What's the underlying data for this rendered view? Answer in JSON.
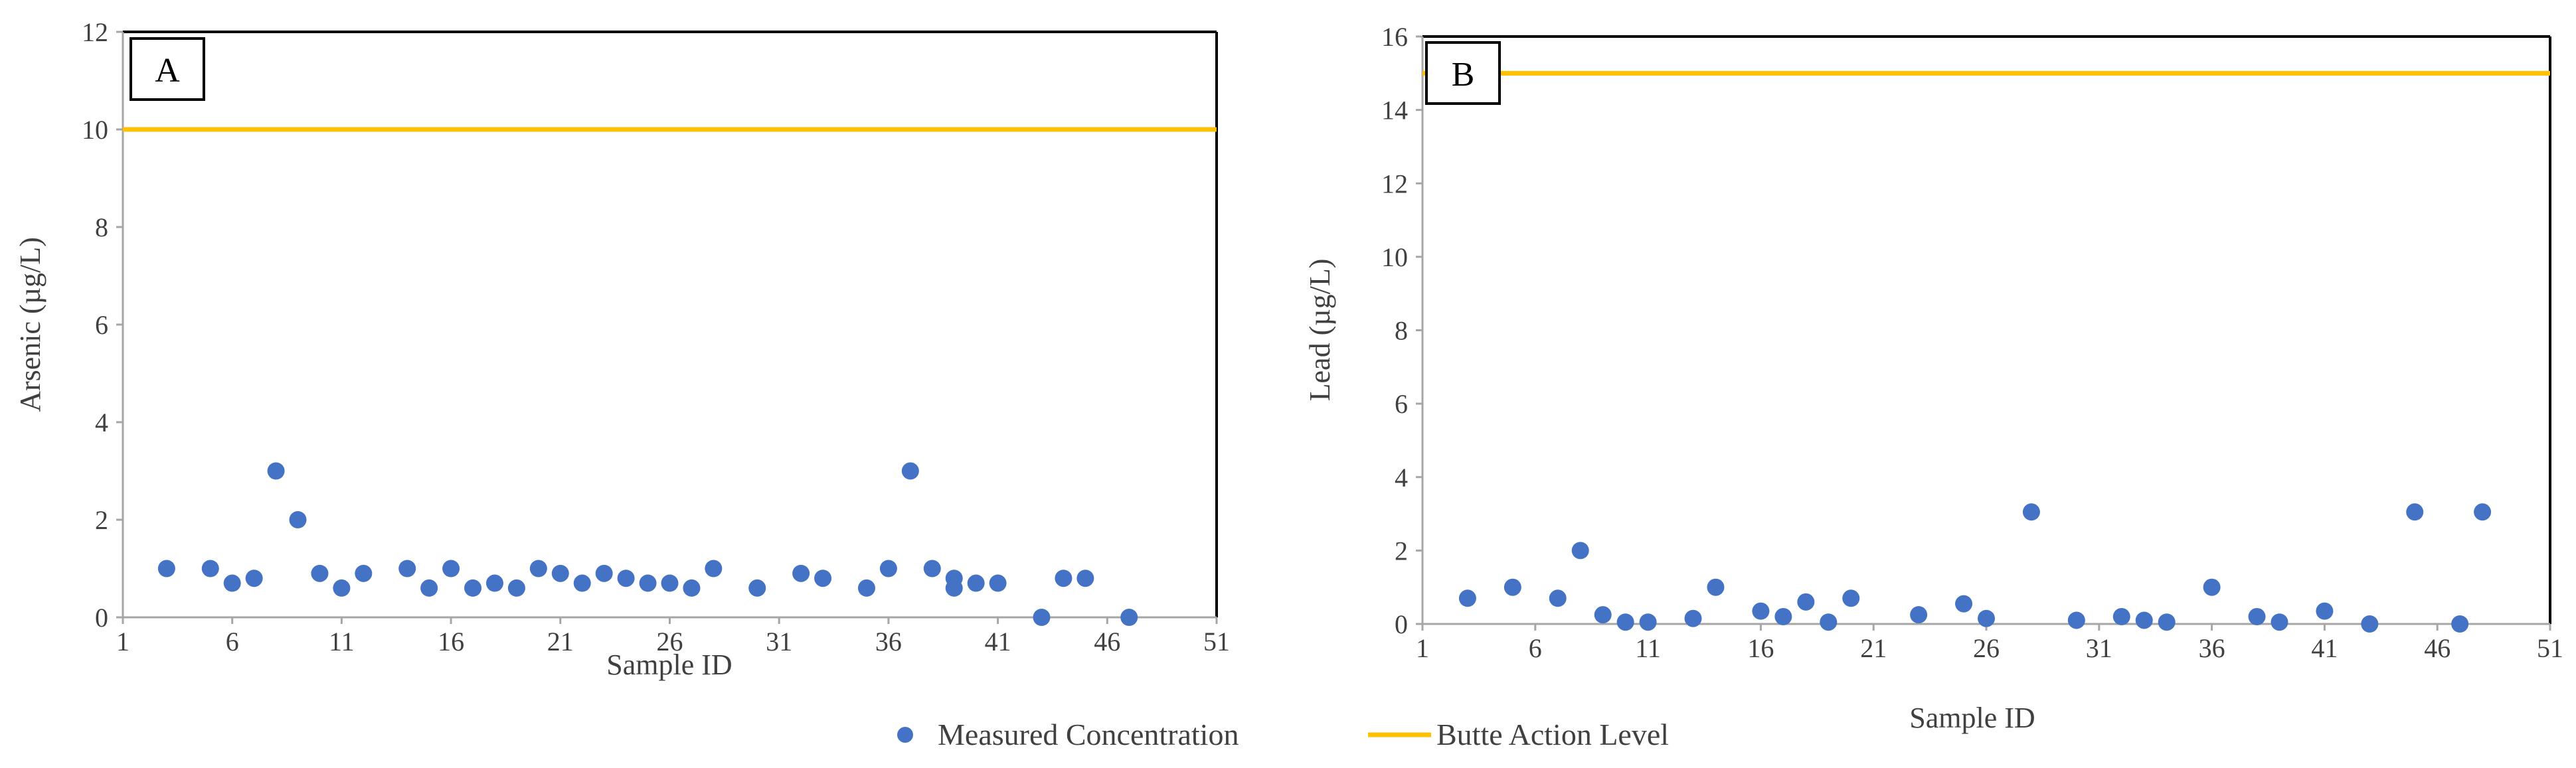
{
  "colors": {
    "points": "#4472C4",
    "action_level": "#FFC000",
    "axis": "#A6A6A6",
    "text": "#404040"
  },
  "legend": {
    "measured": "Measured Concentration",
    "action_level": "Butte Action Level"
  },
  "chart_data": [
    {
      "type": "scatter",
      "panel": "A",
      "xlabel": "Sample ID",
      "ylabel": "Arsenic (µg/L)",
      "xlim": [
        1,
        51
      ],
      "ylim": [
        0,
        12
      ],
      "xticks": [
        1,
        6,
        11,
        16,
        21,
        26,
        31,
        36,
        41,
        46,
        51
      ],
      "yticks": [
        0,
        2,
        4,
        6,
        8,
        10,
        12
      ],
      "action_level": 10,
      "series": [
        {
          "name": "Measured Concentration",
          "x": [
            3,
            5,
            6,
            7,
            8,
            9,
            10,
            11,
            12,
            14,
            15,
            16,
            17,
            18,
            19,
            20,
            21,
            22,
            23,
            24,
            25,
            26,
            27,
            28,
            30,
            32,
            33,
            35,
            36,
            37,
            38,
            39,
            39,
            40,
            41,
            43,
            44,
            45,
            47
          ],
          "y": [
            1.0,
            1.0,
            0.7,
            0.8,
            3.0,
            2.0,
            0.9,
            0.6,
            0.9,
            1.0,
            0.6,
            1.0,
            0.6,
            0.7,
            0.6,
            1.0,
            0.9,
            0.7,
            0.9,
            0.8,
            0.7,
            0.7,
            0.6,
            1.0,
            0.6,
            0.9,
            0.8,
            0.6,
            1.0,
            3.0,
            1.0,
            0.8,
            0.6,
            0.7,
            0.7,
            0.0,
            0.8,
            0.8,
            0.0
          ]
        },
        {
          "name": "Butte Action Level",
          "x": [
            1,
            51
          ],
          "y": [
            10,
            10
          ]
        }
      ]
    },
    {
      "type": "scatter",
      "panel": "B",
      "xlabel": "Sample ID",
      "ylabel": "Lead (µg/L)",
      "xlim": [
        1,
        51
      ],
      "ylim": [
        0,
        16
      ],
      "xticks": [
        1,
        6,
        11,
        16,
        21,
        26,
        31,
        36,
        41,
        46,
        51
      ],
      "yticks": [
        0,
        2,
        4,
        6,
        8,
        10,
        12,
        14,
        16
      ],
      "action_level": 15,
      "series": [
        {
          "name": "Measured Concentration",
          "x": [
            3,
            5,
            7,
            8,
            9,
            10,
            11,
            13,
            14,
            16,
            17,
            18,
            19,
            20,
            23,
            25,
            26,
            28,
            30,
            32,
            33,
            34,
            36,
            38,
            39,
            41,
            43,
            45,
            47,
            48
          ],
          "y": [
            0.7,
            1.0,
            0.7,
            2.0,
            0.25,
            0.05,
            0.05,
            0.15,
            1.0,
            0.35,
            0.2,
            0.6,
            0.05,
            0.7,
            0.25,
            0.55,
            0.15,
            3.05,
            0.1,
            0.2,
            0.1,
            0.05,
            1.0,
            0.2,
            0.05,
            0.35,
            0.0,
            3.05,
            0.0,
            3.05
          ]
        },
        {
          "name": "Butte Action Level",
          "x": [
            1,
            51
          ],
          "y": [
            15,
            15
          ]
        }
      ]
    }
  ]
}
